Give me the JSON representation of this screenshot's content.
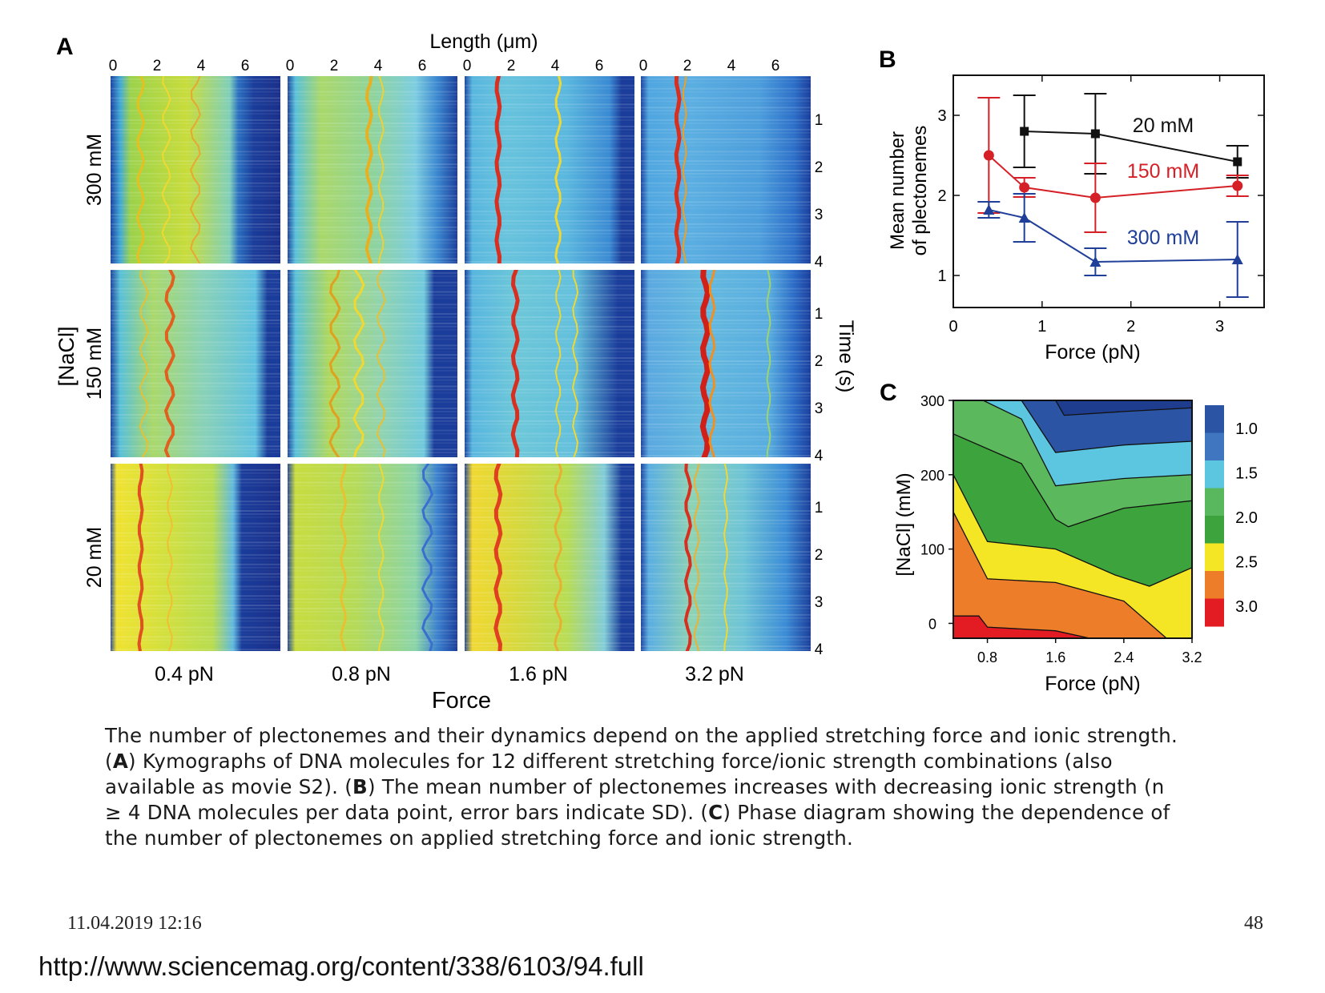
{
  "panel_labels": {
    "a": "A",
    "b": "B",
    "c": "C"
  },
  "panel_a": {
    "top_axis_label": "Length (μm)",
    "top_ticks": [
      "0",
      "2",
      "4",
      "6"
    ],
    "row_labels": [
      "300 mM",
      "150 mM",
      "20 mM"
    ],
    "left_axis_label": "[NaCl]",
    "right_axis_label": "Time (s)",
    "right_ticks": [
      "1",
      "2",
      "3",
      "4"
    ],
    "column_labels": [
      "0.4 pN",
      "0.8 pN",
      "1.6 pN",
      "3.2 pN"
    ],
    "bottom_axis_label": "Force"
  },
  "chart_data": [
    {
      "type": "line",
      "panel": "B",
      "xlabel": "Force (pN)",
      "ylabel": "Mean number of plectonemes",
      "ylabel_lines": [
        "Mean number",
        "of plectonemes"
      ],
      "xlim": [
        0,
        3.5
      ],
      "ylim": [
        0.6,
        3.5
      ],
      "x_ticks": [
        "0",
        "1",
        "2",
        "3"
      ],
      "y_ticks": [
        "1",
        "2",
        "3"
      ],
      "series": [
        {
          "name": "20 mM",
          "color": "#111111",
          "marker": "square",
          "x": [
            0.8,
            1.6,
            3.2
          ],
          "y": [
            2.8,
            2.77,
            2.42
          ],
          "err": [
            0.45,
            0.5,
            0.2
          ]
        },
        {
          "name": "150 mM",
          "color": "#d42026",
          "marker": "circle",
          "x": [
            0.4,
            0.8,
            1.6,
            3.2
          ],
          "y": [
            2.5,
            2.1,
            1.97,
            2.12
          ],
          "err": [
            0.72,
            0.12,
            0.43,
            0.13
          ]
        },
        {
          "name": "300 mM",
          "color": "#1f3f99",
          "marker": "triangle",
          "x": [
            0.4,
            0.8,
            1.6,
            3.2
          ],
          "y": [
            1.82,
            1.72,
            1.17,
            1.2
          ],
          "err": [
            0.1,
            0.3,
            0.17,
            0.47
          ]
        }
      ]
    },
    {
      "type": "heatmap",
      "panel": "C",
      "xlabel": "Force (pN)",
      "ylabel": "[NaCl] (mM)",
      "x_ticks": [
        "0.8",
        "1.6",
        "2.4",
        "3.2"
      ],
      "y_ticks": [
        "0",
        "100",
        "200",
        "300"
      ],
      "colorbar": {
        "labels": [
          "1.0",
          "1.5",
          "2.0",
          "2.5",
          "3.0"
        ],
        "colors": [
          "#2b55a4",
          "#3f76bf",
          "#5cc6e0",
          "#59b85e",
          "#3da33c",
          "#f5e625",
          "#ee7d2a",
          "#e31b23"
        ]
      },
      "levels": [
        {
          "value": "3.0+",
          "color": "#e31b23"
        },
        {
          "value": "2.5-3.0",
          "color": "#ee7d2a"
        },
        {
          "value": "2.25-2.5",
          "color": "#f5e625"
        },
        {
          "value": "2.0-2.25",
          "color": "#3da33c"
        },
        {
          "value": "1.75-2.0",
          "color": "#5cb85c"
        },
        {
          "value": "1.5-1.75",
          "color": "#5cc6e0"
        },
        {
          "value": "1.0-1.5",
          "color": "#2b55a4"
        }
      ]
    }
  ],
  "caption": {
    "l1": "The number of plectonemes and their dynamics depend on the applied stretching force and ionic strength.",
    "l2_a": "(",
    "l2_b": "A",
    "l2_c": ") Kymographs of DNA molecules for 12 different stretching force/ionic strength combinations (also",
    "l3_a": "available as movie S2). (",
    "l3_b": "B",
    "l3_c": ") The mean number of plectonemes increases with decreasing ionic strength (n",
    "l4_a": "≥ 4 DNA molecules per data point, error bars indicate SD). (",
    "l4_b": "C",
    "l4_c": ") Phase diagram showing the dependence of",
    "l5": "the number of plectonemes on applied stretching force and ionic strength."
  },
  "footer": {
    "date": "11.04.2019 12:16",
    "page": "48",
    "url": "http://www.sciencemag.org/content/338/6103/94.full"
  }
}
